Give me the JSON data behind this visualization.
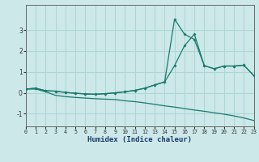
{
  "xlabel": "Humidex (Indice chaleur)",
  "x": [
    0,
    1,
    2,
    3,
    4,
    5,
    6,
    7,
    8,
    9,
    10,
    11,
    12,
    13,
    14,
    15,
    16,
    17,
    18,
    19,
    20,
    21,
    22,
    23
  ],
  "line1": [
    0.18,
    0.22,
    0.1,
    0.08,
    0.02,
    -0.02,
    -0.05,
    -0.07,
    -0.04,
    0.0,
    0.05,
    0.12,
    0.22,
    0.38,
    0.52,
    1.3,
    2.25,
    2.8,
    1.3,
    1.15,
    1.28,
    1.28,
    1.32,
    0.82
  ],
  "line2": [
    0.18,
    0.22,
    0.1,
    0.08,
    0.02,
    -0.02,
    -0.05,
    -0.07,
    -0.04,
    0.0,
    0.05,
    0.12,
    0.22,
    0.38,
    0.52,
    3.52,
    2.8,
    2.55,
    1.3,
    1.15,
    1.28,
    1.28,
    1.32,
    0.82
  ],
  "line3": [
    0.18,
    0.18,
    0.05,
    -0.12,
    -0.18,
    -0.22,
    -0.25,
    -0.28,
    -0.3,
    -0.32,
    -0.38,
    -0.42,
    -0.48,
    -0.55,
    -0.62,
    -0.68,
    -0.75,
    -0.82,
    -0.88,
    -0.95,
    -1.02,
    -1.1,
    -1.2,
    -1.32
  ],
  "color": "#1a7a6e",
  "bg_color": "#cce8e8",
  "grid_color": "#aed4d4",
  "ylim": [
    -1.6,
    4.2
  ],
  "xlim": [
    0,
    23
  ]
}
